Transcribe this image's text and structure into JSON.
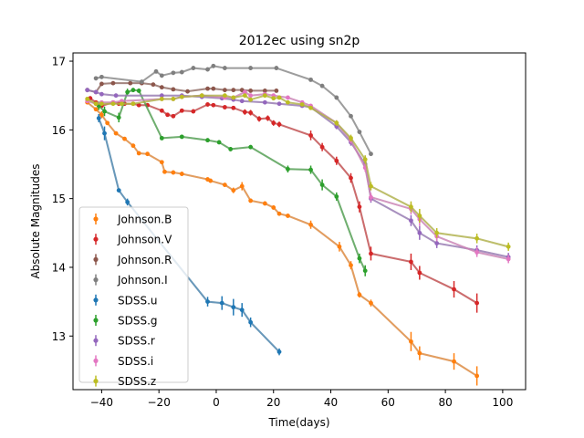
{
  "chart_data": {
    "type": "line",
    "title": "2012ec using sn2p",
    "xlabel": "Time(days)",
    "ylabel": "Absolute Magnitudes",
    "xlim": [
      -50,
      108
    ],
    "ylim": [
      12.22,
      17.12
    ],
    "y_inverted": false,
    "x_ticks": [
      -40,
      -20,
      0,
      20,
      40,
      60,
      80,
      100
    ],
    "y_ticks": [
      13,
      14,
      15,
      16,
      17
    ],
    "grid": false,
    "legend_position": "lower-left",
    "series": [
      {
        "name": "Johnson.B",
        "color": "#ff7f0e",
        "x": [
          -45,
          -42,
          -40,
          -38,
          -35,
          -32,
          -29,
          -27,
          -24,
          -19,
          -18,
          -15,
          -12,
          -3,
          -2,
          3,
          6,
          9,
          12,
          17,
          20,
          22,
          25,
          33,
          43,
          47,
          50,
          54,
          68,
          71,
          83,
          91
        ],
        "y": [
          16.4,
          16.3,
          16.22,
          16.1,
          15.95,
          15.87,
          15.77,
          15.66,
          15.65,
          15.53,
          15.39,
          15.38,
          15.36,
          15.28,
          15.26,
          15.2,
          15.12,
          15.18,
          14.97,
          14.93,
          14.87,
          14.78,
          14.75,
          14.62,
          14.3,
          14.03,
          13.6,
          13.48,
          12.92,
          12.75,
          12.63,
          12.42
        ],
        "err": [
          0.02,
          0.03,
          0.05,
          0.02,
          0.02,
          0.02,
          0.02,
          0.02,
          0.02,
          0.03,
          0.02,
          0.03,
          0.03,
          0.03,
          0.03,
          0.03,
          0.04,
          0.06,
          0.03,
          0.03,
          0.03,
          0.03,
          0.03,
          0.06,
          0.07,
          0.06,
          0.04,
          0.05,
          0.14,
          0.1,
          0.12,
          0.14
        ]
      },
      {
        "name": "Johnson.V",
        "color": "#d62728",
        "x": [
          -44,
          -42,
          -40,
          -36,
          -34,
          -32,
          -29,
          -27,
          -24,
          -19,
          -17,
          -15,
          -12,
          -8,
          -3,
          -1,
          3,
          6,
          10,
          12,
          15,
          18,
          20,
          22,
          33,
          37,
          42,
          47,
          50,
          54,
          68,
          71,
          83,
          91
        ],
        "y": [
          16.46,
          16.4,
          16.35,
          16.4,
          16.38,
          16.38,
          16.38,
          16.36,
          16.36,
          16.28,
          16.22,
          16.2,
          16.28,
          16.27,
          16.37,
          16.36,
          16.33,
          16.32,
          16.26,
          16.25,
          16.16,
          16.17,
          16.1,
          16.08,
          15.92,
          15.75,
          15.55,
          15.3,
          14.88,
          14.2,
          14.08,
          13.92,
          13.68,
          13.48
        ],
        "err": [
          0.02,
          0.02,
          0.03,
          0.02,
          0.02,
          0.02,
          0.02,
          0.02,
          0.02,
          0.03,
          0.03,
          0.03,
          0.03,
          0.03,
          0.03,
          0.03,
          0.03,
          0.03,
          0.04,
          0.04,
          0.04,
          0.04,
          0.04,
          0.04,
          0.07,
          0.06,
          0.06,
          0.07,
          0.08,
          0.1,
          0.12,
          0.1,
          0.12,
          0.14
        ]
      },
      {
        "name": "Johnson.R",
        "color": "#8c564b",
        "x": [
          -45,
          -42,
          -40,
          -36,
          -30,
          -26,
          -22,
          -19,
          -15,
          -10,
          -3,
          -1,
          3,
          6,
          9,
          12,
          17,
          21
        ],
        "y": [
          16.58,
          16.55,
          16.67,
          16.68,
          16.68,
          16.68,
          16.66,
          16.62,
          16.59,
          16.56,
          16.6,
          16.6,
          16.58,
          16.58,
          16.58,
          16.57,
          16.57,
          16.57
        ],
        "err": [
          0.02,
          0.02,
          0.03,
          0.02,
          0.02,
          0.02,
          0.02,
          0.02,
          0.02,
          0.02,
          0.02,
          0.02,
          0.02,
          0.02,
          0.02,
          0.02,
          0.02,
          0.02
        ]
      },
      {
        "name": "Johnson.I",
        "color": "#7f7f7f",
        "x": [
          -42,
          -40,
          -26,
          -21,
          -19,
          -15,
          -12,
          -8,
          -3,
          -1,
          3,
          12,
          21,
          33,
          37,
          42,
          47,
          50,
          54
        ],
        "y": [
          16.75,
          16.77,
          16.7,
          16.85,
          16.79,
          16.83,
          16.84,
          16.9,
          16.88,
          16.93,
          16.9,
          16.9,
          16.9,
          16.73,
          16.64,
          16.47,
          16.2,
          15.97,
          15.65
        ],
        "err": [
          0.03,
          0.03,
          0.03,
          0.03,
          0.03,
          0.03,
          0.03,
          0.03,
          0.03,
          0.03,
          0.03,
          0.03,
          0.03,
          0.03,
          0.03,
          0.03,
          0.03,
          0.03,
          0.03
        ]
      },
      {
        "name": "SDSS.u",
        "color": "#1f77b4",
        "x": [
          -41,
          -39,
          -34,
          -31,
          -3,
          2,
          6,
          9,
          12,
          22
        ],
        "y": [
          16.17,
          15.95,
          15.12,
          14.95,
          13.5,
          13.48,
          13.42,
          13.38,
          13.2,
          12.77
        ],
        "err": [
          0.06,
          0.1,
          0.02,
          0.05,
          0.07,
          0.1,
          0.12,
          0.1,
          0.07,
          0.05
        ]
      },
      {
        "name": "SDSS.g",
        "color": "#2ca02c",
        "x": [
          -41,
          -39,
          -34,
          -31,
          -29,
          -27,
          -19,
          -12,
          -3,
          1,
          5,
          12,
          25,
          33,
          37,
          42,
          50,
          52
        ],
        "y": [
          16.35,
          16.27,
          16.18,
          16.55,
          16.58,
          16.57,
          15.88,
          15.9,
          15.85,
          15.82,
          15.72,
          15.75,
          15.43,
          15.42,
          15.2,
          15.03,
          14.13,
          13.95
        ],
        "err": [
          0.06,
          0.07,
          0.07,
          0.05,
          0.03,
          0.03,
          0.03,
          0.03,
          0.03,
          0.03,
          0.03,
          0.03,
          0.05,
          0.06,
          0.08,
          0.06,
          0.07,
          0.08
        ]
      },
      {
        "name": "SDSS.r",
        "color": "#9467bd",
        "x": [
          -45,
          -42,
          -40,
          -35,
          -19,
          -12,
          -5,
          2,
          6,
          9,
          17,
          22,
          30,
          33,
          42,
          47,
          52,
          54,
          68,
          71,
          77,
          91,
          102
        ],
        "y": [
          16.58,
          16.55,
          16.52,
          16.5,
          16.5,
          16.5,
          16.48,
          16.46,
          16.44,
          16.42,
          16.4,
          16.38,
          16.35,
          16.33,
          16.05,
          15.82,
          15.5,
          15.0,
          14.68,
          14.5,
          14.35,
          14.25,
          14.15
        ],
        "err": [
          0.02,
          0.02,
          0.02,
          0.02,
          0.02,
          0.02,
          0.02,
          0.02,
          0.02,
          0.02,
          0.02,
          0.02,
          0.02,
          0.03,
          0.04,
          0.05,
          0.06,
          0.06,
          0.08,
          0.1,
          0.07,
          0.07,
          0.06
        ]
      },
      {
        "name": "SDSS.i",
        "color": "#e377c2",
        "x": [
          -45,
          -42,
          -40,
          -36,
          -33,
          -19,
          -15,
          -12,
          -5,
          3,
          6,
          10,
          12,
          17,
          20,
          25,
          30,
          33,
          42,
          47,
          52,
          54,
          68,
          71,
          77,
          91,
          102
        ],
        "y": [
          16.42,
          16.38,
          16.4,
          16.4,
          16.42,
          16.45,
          16.45,
          16.48,
          16.5,
          16.47,
          16.47,
          16.55,
          16.5,
          16.52,
          16.5,
          16.47,
          16.4,
          16.35,
          16.1,
          15.85,
          15.45,
          15.02,
          14.85,
          14.7,
          14.45,
          14.22,
          14.12
        ],
        "err": [
          0.02,
          0.02,
          0.02,
          0.02,
          0.02,
          0.02,
          0.02,
          0.02,
          0.02,
          0.02,
          0.02,
          0.02,
          0.02,
          0.02,
          0.02,
          0.02,
          0.02,
          0.03,
          0.04,
          0.05,
          0.06,
          0.06,
          0.08,
          0.1,
          0.07,
          0.07,
          0.06
        ]
      },
      {
        "name": "SDSS.z",
        "color": "#bcbd22",
        "x": [
          -45,
          -42,
          -40,
          -36,
          -33,
          -29,
          -19,
          -15,
          -12,
          -5,
          3,
          6,
          10,
          12,
          17,
          20,
          22,
          25,
          30,
          33,
          42,
          47,
          52,
          54,
          68,
          71,
          77,
          91,
          102
        ],
        "y": [
          16.45,
          16.38,
          16.38,
          16.38,
          16.38,
          16.38,
          16.45,
          16.45,
          16.48,
          16.5,
          16.5,
          16.47,
          16.5,
          16.44,
          16.5,
          16.46,
          16.47,
          16.4,
          16.37,
          16.32,
          16.1,
          15.88,
          15.57,
          15.18,
          14.88,
          14.75,
          14.5,
          14.42,
          14.3
        ],
        "err": [
          0.02,
          0.02,
          0.02,
          0.02,
          0.02,
          0.02,
          0.02,
          0.02,
          0.02,
          0.02,
          0.02,
          0.02,
          0.02,
          0.02,
          0.02,
          0.02,
          0.02,
          0.02,
          0.02,
          0.03,
          0.04,
          0.05,
          0.06,
          0.06,
          0.08,
          0.1,
          0.07,
          0.07,
          0.06
        ]
      }
    ]
  }
}
